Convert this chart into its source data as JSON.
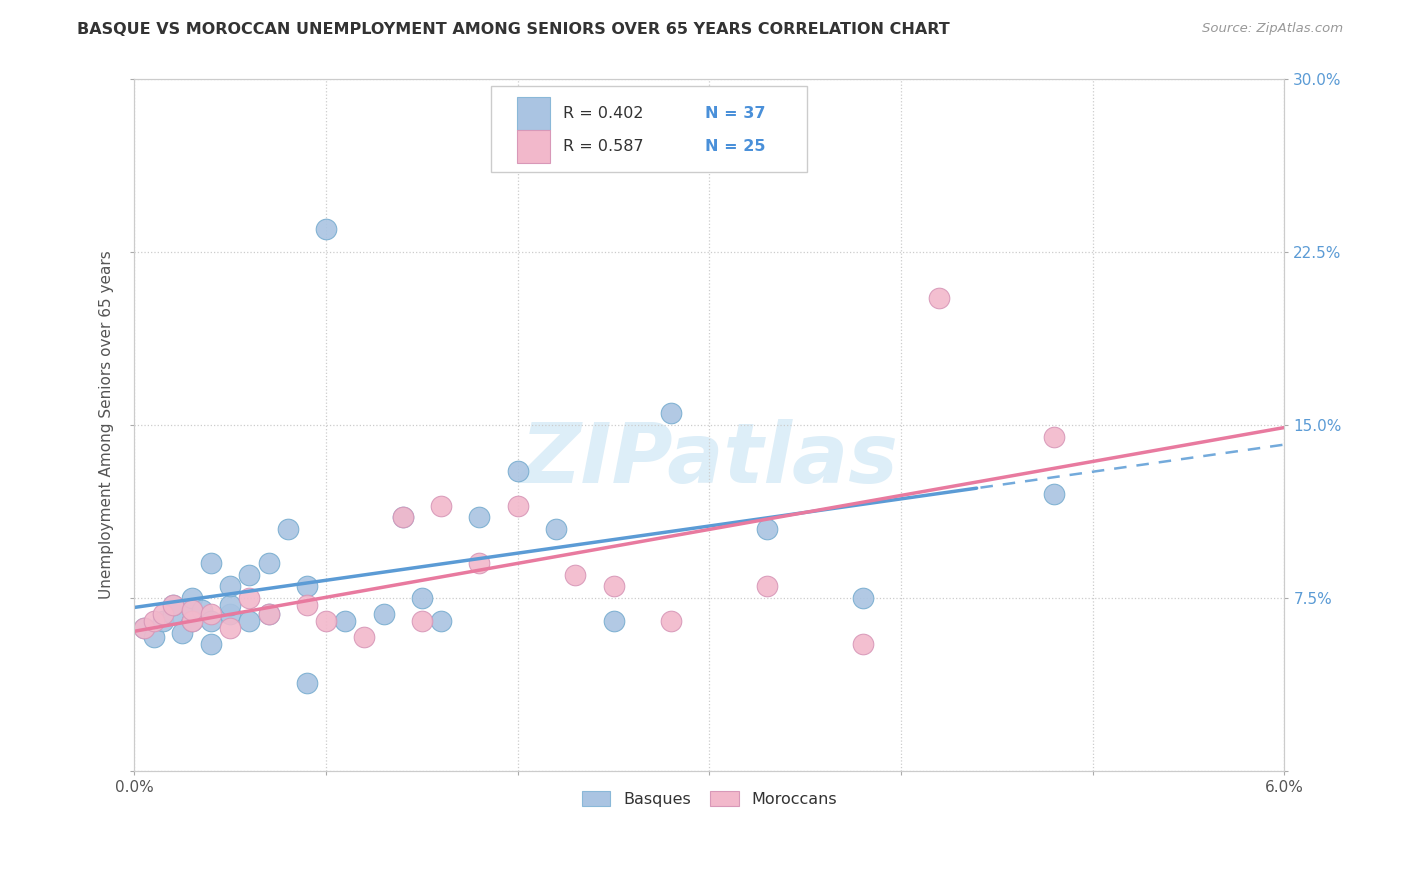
{
  "title": "BASQUE VS MOROCCAN UNEMPLOYMENT AMONG SENIORS OVER 65 YEARS CORRELATION CHART",
  "source": "Source: ZipAtlas.com",
  "ylabel": "Unemployment Among Seniors over 65 years",
  "xlim": [
    0.0,
    0.06
  ],
  "ylim": [
    0.0,
    0.3
  ],
  "xticks": [
    0.0,
    0.01,
    0.02,
    0.03,
    0.04,
    0.05,
    0.06
  ],
  "yticks": [
    0.0,
    0.075,
    0.15,
    0.225,
    0.3
  ],
  "xtick_labels": [
    "0.0%",
    "",
    "",
    "",
    "",
    "",
    "6.0%"
  ],
  "ytick_labels": [
    "",
    "7.5%",
    "15.0%",
    "22.5%",
    "30.0%"
  ],
  "basque_R": 0.402,
  "basque_N": 37,
  "moroccan_R": 0.587,
  "moroccan_N": 25,
  "basque_color": "#aac4e2",
  "moroccan_color": "#f2b8cb",
  "basque_line_color": "#5b9bd5",
  "moroccan_line_color": "#e87a9f",
  "legend_text_color": "#4a90d9",
  "watermark_color": "#ddeef8",
  "basque_x": [
    0.0005,
    0.001,
    0.0015,
    0.002,
    0.002,
    0.0025,
    0.003,
    0.003,
    0.003,
    0.0035,
    0.004,
    0.004,
    0.004,
    0.005,
    0.005,
    0.005,
    0.006,
    0.006,
    0.007,
    0.007,
    0.008,
    0.009,
    0.009,
    0.01,
    0.011,
    0.013,
    0.014,
    0.015,
    0.016,
    0.018,
    0.02,
    0.022,
    0.025,
    0.028,
    0.033,
    0.038,
    0.048
  ],
  "basque_y": [
    0.062,
    0.058,
    0.065,
    0.068,
    0.072,
    0.06,
    0.07,
    0.065,
    0.075,
    0.07,
    0.055,
    0.065,
    0.09,
    0.068,
    0.072,
    0.08,
    0.065,
    0.085,
    0.068,
    0.09,
    0.105,
    0.038,
    0.08,
    0.235,
    0.065,
    0.068,
    0.11,
    0.075,
    0.065,
    0.11,
    0.13,
    0.105,
    0.065,
    0.155,
    0.105,
    0.075,
    0.12
  ],
  "moroccan_x": [
    0.0005,
    0.001,
    0.0015,
    0.002,
    0.003,
    0.003,
    0.004,
    0.005,
    0.006,
    0.007,
    0.009,
    0.01,
    0.012,
    0.014,
    0.015,
    0.016,
    0.018,
    0.02,
    0.023,
    0.025,
    0.028,
    0.033,
    0.038,
    0.042,
    0.048
  ],
  "moroccan_y": [
    0.062,
    0.065,
    0.068,
    0.072,
    0.065,
    0.07,
    0.068,
    0.062,
    0.075,
    0.068,
    0.072,
    0.065,
    0.058,
    0.11,
    0.065,
    0.115,
    0.09,
    0.115,
    0.085,
    0.08,
    0.065,
    0.08,
    0.055,
    0.205,
    0.145
  ]
}
